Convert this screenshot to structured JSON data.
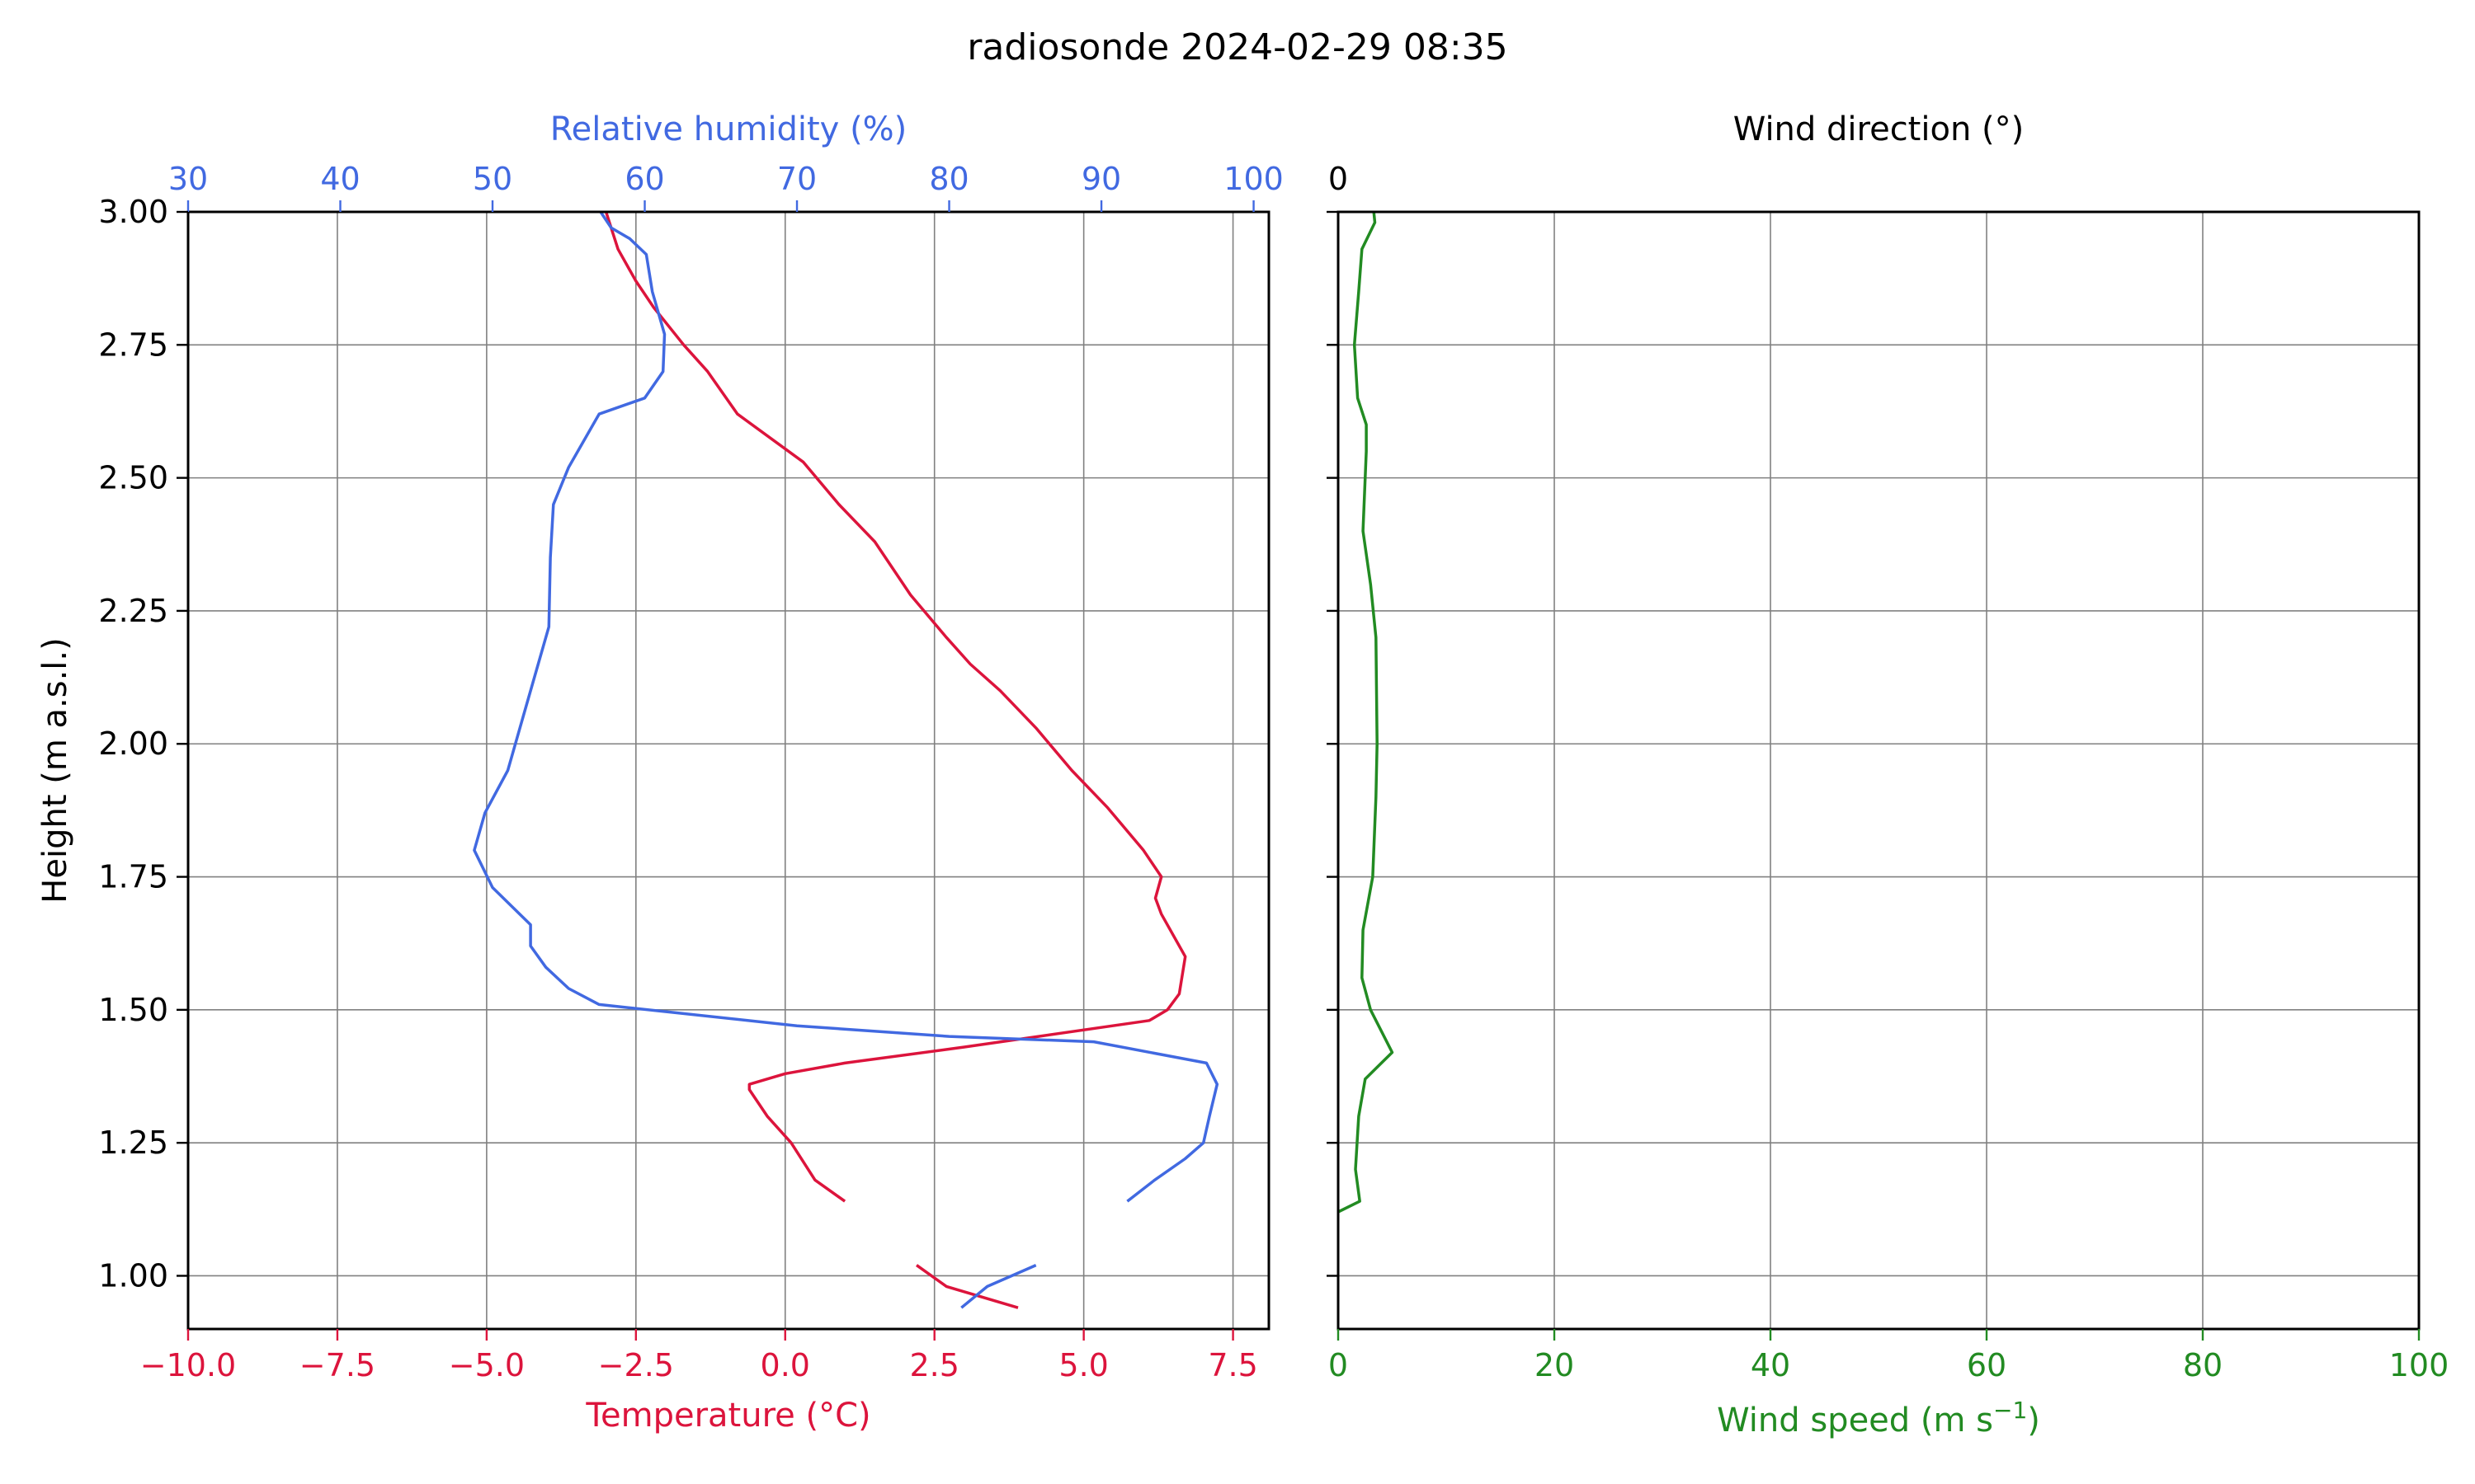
{
  "title": "radiosonde 2024-02-29 08:35",
  "colors": {
    "temperature": "#dc143c",
    "humidity": "#4169e1",
    "wind": "#228b22",
    "grid": "#808080",
    "axis": "#000000"
  },
  "chart_data": [
    {
      "type": "line",
      "panel": "left",
      "title": "radiosonde 2024-02-29 08:35",
      "ylabel": "Height (m a.s.l.)",
      "ylim": [
        0.9,
        3.0
      ],
      "yticks": [
        1.0,
        1.25,
        1.5,
        1.75,
        2.0,
        2.25,
        2.5,
        2.75,
        3.0
      ],
      "ytick_labels": [
        "1.00",
        "1.25",
        "1.50",
        "1.75",
        "2.00",
        "2.25",
        "2.50",
        "2.75",
        "3.00"
      ],
      "xlabel": "Temperature (°C)",
      "xlim": [
        -10.0,
        8.1
      ],
      "xticks": [
        -10.0,
        -7.5,
        -5.0,
        -2.5,
        0.0,
        2.5,
        5.0,
        7.5
      ],
      "xtick_labels": [
        "−10.0",
        "−7.5",
        "−5.0",
        "−2.5",
        "0.0",
        "2.5",
        "5.0",
        "7.5"
      ],
      "x2label": "Relative humidity (%)",
      "x2lim": [
        30,
        101
      ],
      "x2ticks": [
        30,
        40,
        50,
        60,
        70,
        80,
        90,
        100
      ],
      "x2tick_labels": [
        "30",
        "40",
        "50",
        "60",
        "70",
        "80",
        "90",
        "100"
      ],
      "grid": true,
      "series": [
        {
          "axis": "x",
          "color": "#dc143c",
          "segments": [
            [
              [
                2.2,
                1.02
              ],
              [
                2.7,
                0.98
              ],
              [
                3.9,
                0.94
              ]
            ],
            [
              [
                1.0,
                1.14
              ],
              [
                0.5,
                1.18
              ],
              [
                0.1,
                1.25
              ],
              [
                -0.3,
                1.3
              ],
              [
                -0.6,
                1.35
              ],
              [
                -0.6,
                1.36
              ],
              [
                0.0,
                1.38
              ],
              [
                1.0,
                1.4
              ],
              [
                3.0,
                1.43
              ],
              [
                6.1,
                1.48
              ],
              [
                6.4,
                1.5
              ],
              [
                6.6,
                1.53
              ],
              [
                6.7,
                1.6
              ],
              [
                6.3,
                1.68
              ],
              [
                6.2,
                1.71
              ],
              [
                6.3,
                1.75
              ],
              [
                6.0,
                1.8
              ],
              [
                5.4,
                1.88
              ],
              [
                4.8,
                1.95
              ],
              [
                4.2,
                2.03
              ],
              [
                3.6,
                2.1
              ],
              [
                3.1,
                2.15
              ],
              [
                2.7,
                2.2
              ],
              [
                2.1,
                2.28
              ],
              [
                1.5,
                2.38
              ],
              [
                0.9,
                2.45
              ],
              [
                0.3,
                2.53
              ],
              [
                -0.8,
                2.62
              ],
              [
                -1.3,
                2.7
              ],
              [
                -1.7,
                2.75
              ],
              [
                -2.2,
                2.82
              ],
              [
                -2.5,
                2.87
              ],
              [
                -2.8,
                2.93
              ],
              [
                -3.0,
                3.0
              ]
            ]
          ]
        },
        {
          "axis": "x2",
          "color": "#4169e1",
          "segments": [
            [
              [
                80.8,
                0.94
              ],
              [
                82.5,
                0.98
              ],
              [
                85.7,
                1.02
              ]
            ],
            [
              [
                91.7,
                1.14
              ],
              [
                93.5,
                1.18
              ],
              [
                95.5,
                1.22
              ],
              [
                96.7,
                1.25
              ],
              [
                97.1,
                1.3
              ],
              [
                97.6,
                1.36
              ],
              [
                96.9,
                1.4
              ],
              [
                89.5,
                1.44
              ],
              [
                80,
                1.45
              ],
              [
                70,
                1.47
              ],
              [
                57,
                1.51
              ],
              [
                55,
                1.54
              ],
              [
                53.5,
                1.58
              ],
              [
                52.5,
                1.62
              ],
              [
                52.5,
                1.66
              ],
              [
                50,
                1.73
              ],
              [
                48.8,
                1.8
              ],
              [
                49.5,
                1.87
              ],
              [
                51,
                1.95
              ],
              [
                52,
                2.05
              ],
              [
                53.3,
                2.18
              ],
              [
                53.7,
                2.22
              ],
              [
                53.8,
                2.35
              ],
              [
                54,
                2.45
              ],
              [
                55,
                2.52
              ],
              [
                57,
                2.62
              ],
              [
                60,
                2.65
              ],
              [
                61.2,
                2.7
              ],
              [
                61.3,
                2.77
              ],
              [
                60.5,
                2.85
              ],
              [
                60.1,
                2.92
              ],
              [
                59,
                2.95
              ],
              [
                57.8,
                2.97
              ],
              [
                57.1,
                3.0
              ]
            ]
          ]
        }
      ]
    },
    {
      "type": "line",
      "panel": "right",
      "ylim": [
        0.9,
        3.0
      ],
      "yticks": [
        1.0,
        1.25,
        1.5,
        1.75,
        2.0,
        2.25,
        2.5,
        2.75,
        3.0
      ],
      "xlabel": "Wind speed (m s⁻¹)",
      "xlabel_base": "Wind speed (m s",
      "xlabel_sup": "−1",
      "xlabel_end": ")",
      "xlim": [
        0,
        100
      ],
      "xticks": [
        0,
        20,
        40,
        60,
        80,
        100
      ],
      "xtick_labels": [
        "0",
        "20",
        "40",
        "60",
        "80",
        "100"
      ],
      "x2label": "Wind direction (°)",
      "x2tick_labels": [
        "0"
      ],
      "grid": true,
      "series": [
        {
          "axis": "x",
          "color": "#228b22",
          "segments": [
            [
              [
                0.0,
                1.12
              ],
              [
                2.0,
                1.14
              ],
              [
                1.6,
                1.2
              ],
              [
                1.9,
                1.3
              ],
              [
                2.5,
                1.37
              ],
              [
                4.0,
                1.4
              ],
              [
                5.0,
                1.42
              ],
              [
                3.0,
                1.5
              ],
              [
                2.2,
                1.56
              ],
              [
                2.3,
                1.65
              ],
              [
                3.2,
                1.75
              ],
              [
                3.5,
                1.9
              ],
              [
                3.6,
                2.0
              ],
              [
                3.5,
                2.2
              ],
              [
                3.0,
                2.3
              ],
              [
                2.3,
                2.4
              ],
              [
                2.6,
                2.55
              ],
              [
                2.6,
                2.6
              ],
              [
                1.8,
                2.65
              ],
              [
                1.5,
                2.75
              ],
              [
                1.9,
                2.85
              ],
              [
                2.2,
                2.93
              ],
              [
                3.4,
                2.98
              ],
              [
                3.3,
                3.0
              ]
            ]
          ]
        }
      ]
    }
  ]
}
